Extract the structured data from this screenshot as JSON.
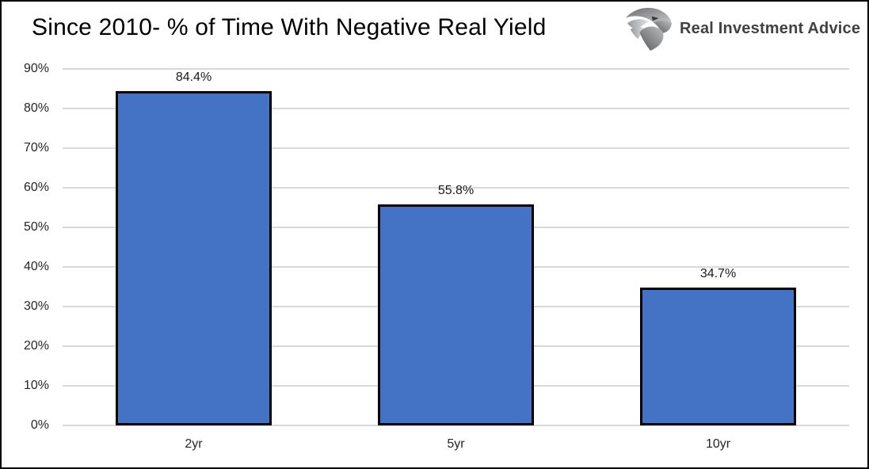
{
  "header": {
    "title": "Since 2010- % of Time With Negative Real Yield",
    "brand": {
      "name": "Real Investment Advice",
      "icon": "eagle-logo"
    }
  },
  "chart_data": {
    "type": "bar",
    "title": "Since 2010- % of Time With Negative Real Yield",
    "categories": [
      "2yr",
      "5yr",
      "10yr"
    ],
    "values": [
      84.4,
      55.8,
      34.7
    ],
    "value_labels": [
      "84.4%",
      "55.8%",
      "34.7%"
    ],
    "xlabel": "",
    "ylabel": "",
    "ylim": [
      0,
      90
    ],
    "y_ticks": [
      0,
      10,
      20,
      30,
      40,
      50,
      60,
      70,
      80,
      90
    ],
    "y_tick_labels": [
      "0%",
      "10%",
      "20%",
      "30%",
      "40%",
      "50%",
      "60%",
      "70%",
      "80%",
      "90%"
    ],
    "grid": "horizontal",
    "legend_position": "none",
    "colors": {
      "bar_fill": "#4472C4",
      "bar_border": "#000000",
      "gridline": "#D9D9D9",
      "title_text": "#000000",
      "tick_text": "#262626",
      "brand_text": "#414042"
    }
  }
}
